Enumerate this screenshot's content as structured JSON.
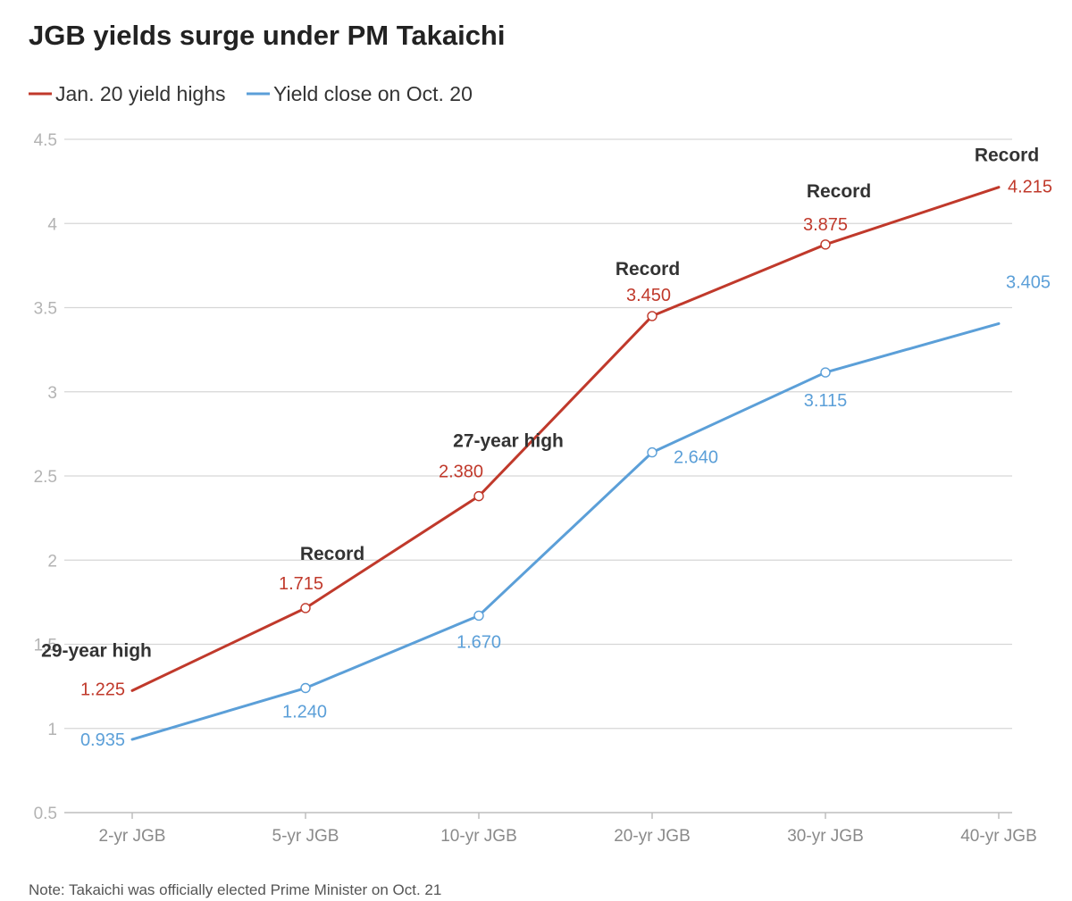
{
  "chart_data": {
    "type": "line",
    "title": "JGB yields surge under PM Takaichi",
    "note": "Note: Takaichi was officially elected Prime Minister on Oct. 21",
    "categories": [
      "2-yr JGB",
      "5-yr JGB",
      "10-yr JGB",
      "20-yr JGB",
      "30-yr JGB",
      "40-yr JGB"
    ],
    "ylim": [
      0.5,
      4.5
    ],
    "yticks": [
      0.5,
      1,
      1.5,
      2,
      2.5,
      3,
      3.5,
      4,
      4.5
    ],
    "ytick_labels": [
      "0.5",
      "1",
      "1.5",
      "2",
      "2.5",
      "3",
      "3.5",
      "4",
      "4.5"
    ],
    "grid": true,
    "legend_position": "top-left",
    "series": [
      {
        "name": "Jan. 20 yield highs",
        "color": "#c0392b",
        "values": [
          1.225,
          1.715,
          2.38,
          3.45,
          3.875,
          4.215
        ],
        "labels": [
          "1.225",
          "1.715",
          "2.380",
          "3.450",
          "3.875",
          "4.215"
        ]
      },
      {
        "name": "Yield close on Oct. 20",
        "color": "#5b9fd8",
        "values": [
          0.935,
          1.24,
          1.67,
          2.64,
          3.115,
          3.405
        ],
        "labels": [
          "0.935",
          "1.240",
          "1.670",
          "2.640",
          "3.115",
          "3.405"
        ]
      }
    ],
    "annotations": [
      {
        "category": "2-yr JGB",
        "text": "29-year high"
      },
      {
        "category": "5-yr JGB",
        "text": "Record"
      },
      {
        "category": "10-yr JGB",
        "text": "27-year high"
      },
      {
        "category": "20-yr JGB",
        "text": "Record"
      },
      {
        "category": "30-yr JGB",
        "text": "Record"
      },
      {
        "category": "40-yr JGB",
        "text": "Record"
      }
    ]
  }
}
